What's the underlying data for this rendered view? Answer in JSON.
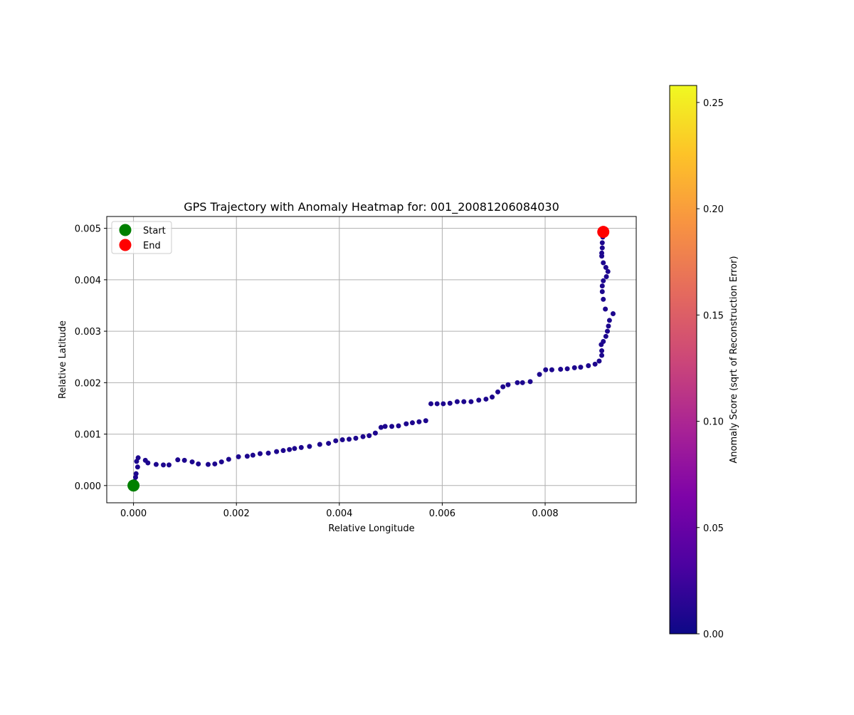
{
  "chart_data": {
    "type": "scatter",
    "title": "GPS Trajectory with Anomaly Heatmap for: 001_20081206084030",
    "xlabel": "Relative Longitude",
    "ylabel": "Relative Latitude",
    "xlim": [
      -0.00052,
      0.00977
    ],
    "ylim": [
      -0.000335,
      0.00523
    ],
    "xticks": [
      0.0,
      0.002,
      0.004,
      0.006,
      0.008
    ],
    "xtick_labels": [
      "0.000",
      "0.002",
      "0.004",
      "0.006",
      "0.008"
    ],
    "yticks": [
      0.0,
      0.001,
      0.002,
      0.003,
      0.004,
      0.005
    ],
    "ytick_labels": [
      "0.000",
      "0.001",
      "0.002",
      "0.003",
      "0.004",
      "0.005"
    ],
    "grid": true,
    "legend": {
      "location": "upper-left",
      "entries": [
        {
          "label": "Start",
          "color": "#008000"
        },
        {
          "label": "End",
          "color": "#ff0000"
        }
      ]
    },
    "start_point": {
      "x": 0.0,
      "y": 0.0
    },
    "end_point": {
      "x": 0.00913,
      "y": 0.00493
    },
    "point_color": "#1d068e",
    "series": [
      {
        "x": [
          0.0,
          0.0,
          2e-05,
          4e-05,
          5e-05,
          6e-05,
          9e-05,
          8e-05,
          0.00023,
          0.00028,
          0.00044,
          0.00058,
          0.00069,
          0.00086,
          0.00099,
          0.00114,
          0.00126,
          0.00145,
          0.00158,
          0.00171,
          0.00185,
          0.00204,
          0.00221,
          0.00232,
          0.00246,
          0.00262,
          0.00278,
          0.00291,
          0.00303,
          0.00313,
          0.00326,
          0.00342,
          0.00362,
          0.00379,
          0.00393,
          0.00406,
          0.00419,
          0.00432,
          0.00446,
          0.00458,
          0.0047,
          0.00481,
          0.00489,
          0.00502,
          0.00515,
          0.0053,
          0.00542,
          0.00555,
          0.00568,
          0.00578,
          0.0059,
          0.00602,
          0.00615,
          0.00629,
          0.00642,
          0.00656,
          0.00671,
          0.00685,
          0.00697,
          0.00708,
          0.00718,
          0.00728,
          0.00746,
          0.00756,
          0.00771,
          0.00789,
          0.00801,
          0.00813,
          0.0083,
          0.00843,
          0.00857,
          0.00869,
          0.00884,
          0.00897,
          0.00905,
          0.0091,
          0.0091,
          0.00909,
          0.00913,
          0.00918,
          0.00921,
          0.00923,
          0.00925,
          0.00932,
          0.00917,
          0.00913,
          0.00911,
          0.00911,
          0.00913,
          0.00919,
          0.00922,
          0.00918,
          0.00913,
          0.0091,
          0.0091,
          0.00911,
          0.00911,
          0.00912
        ],
        "y": [
          -4e-05,
          4e-05,
          8e-05,
          0.00016,
          0.00023,
          0.00047,
          0.00054,
          0.00036,
          0.00049,
          0.00044,
          0.00041,
          0.0004,
          0.0004,
          0.0005,
          0.00049,
          0.00046,
          0.00042,
          0.00041,
          0.00042,
          0.00046,
          0.00051,
          0.00056,
          0.00057,
          0.00059,
          0.00062,
          0.00063,
          0.00066,
          0.00068,
          0.0007,
          0.00072,
          0.00074,
          0.00076,
          0.0008,
          0.00082,
          0.00087,
          0.00089,
          0.0009,
          0.00092,
          0.00095,
          0.00097,
          0.00102,
          0.00113,
          0.00115,
          0.00115,
          0.00116,
          0.0012,
          0.00122,
          0.00124,
          0.00126,
          0.00159,
          0.00159,
          0.00159,
          0.0016,
          0.00163,
          0.00163,
          0.00163,
          0.00166,
          0.00168,
          0.00172,
          0.00182,
          0.00192,
          0.00196,
          0.002,
          0.002,
          0.00202,
          0.00216,
          0.00225,
          0.00225,
          0.00226,
          0.00227,
          0.00229,
          0.0023,
          0.00233,
          0.00236,
          0.00242,
          0.00253,
          0.00262,
          0.00274,
          0.0028,
          0.0029,
          0.003,
          0.0031,
          0.00321,
          0.00334,
          0.00343,
          0.00362,
          0.00377,
          0.00388,
          0.00398,
          0.00406,
          0.00416,
          0.00424,
          0.00433,
          0.00446,
          0.00452,
          0.00462,
          0.00472,
          0.00483
        ],
        "anomaly_score": "all near 0.00"
      }
    ],
    "colorbar": {
      "label": "Anomaly Score (sqrt of Reconstruction Error)",
      "colormap": "plasma",
      "range": [
        0.0,
        0.258
      ],
      "ticks": [
        0.0,
        0.05,
        0.1,
        0.15,
        0.2,
        0.25
      ],
      "tick_labels": [
        "0.00",
        "0.05",
        "0.10",
        "0.15",
        "0.20",
        "0.25"
      ]
    }
  }
}
